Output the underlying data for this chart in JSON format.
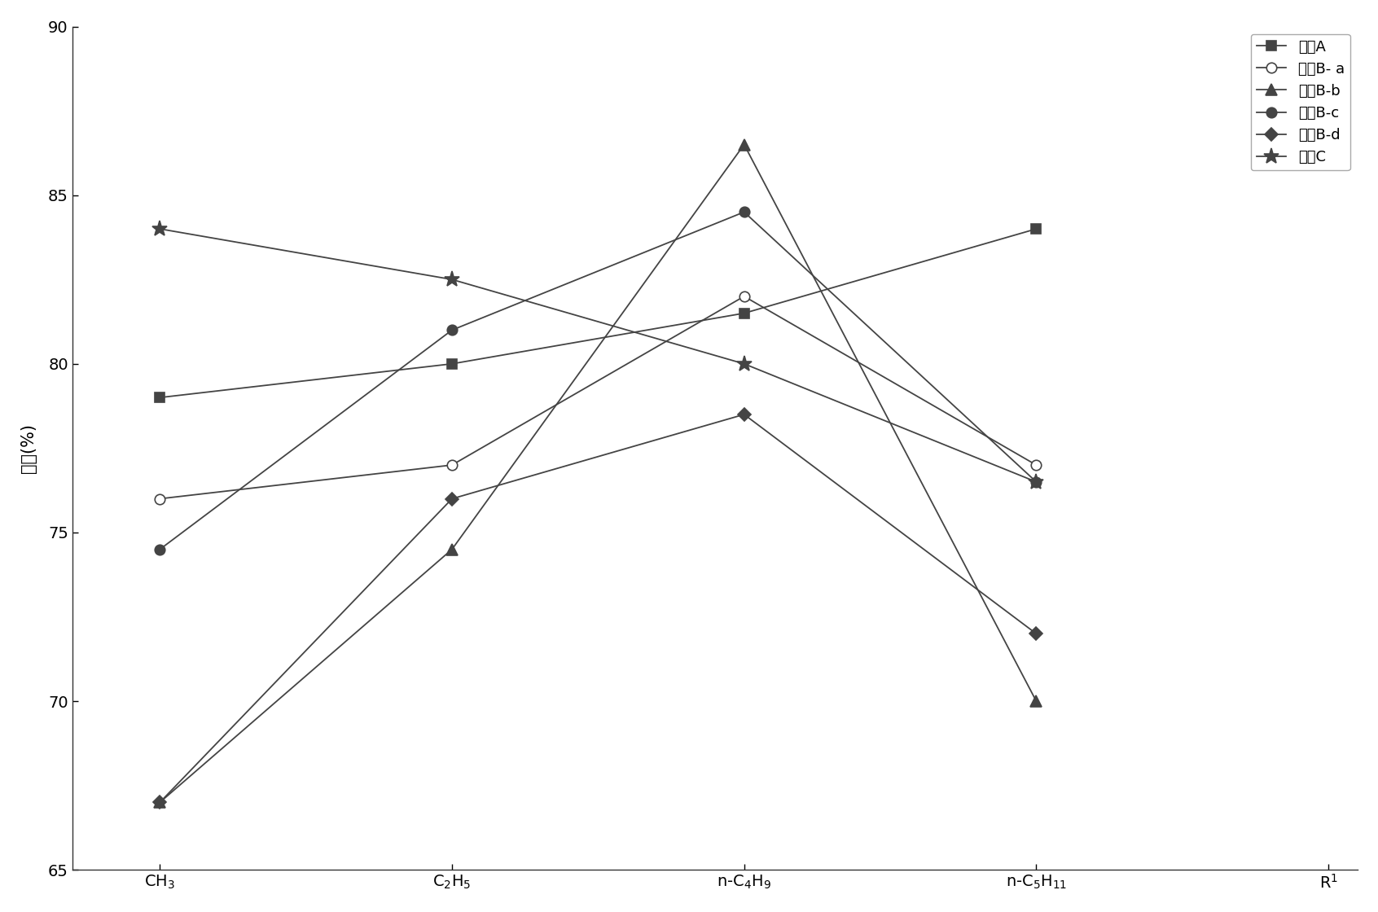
{
  "x_labels": [
    "CH$_3$",
    "C$_2$H$_5$",
    "n-C$_4$H$_9$",
    "n-C$_5$H$_{11}$"
  ],
  "x_label_end": "R$^1$",
  "ylabel": "收率(%)",
  "ylim": [
    65,
    90
  ],
  "yticks": [
    65,
    70,
    75,
    80,
    85,
    90
  ],
  "series": [
    {
      "name": "路线A",
      "values": [
        79,
        80,
        81.5,
        84
      ],
      "color": "#444444",
      "marker": "s",
      "mfc": "#444444",
      "mec": "#444444",
      "ms": 9,
      "linestyle": "-"
    },
    {
      "name": "路线B- a",
      "values": [
        76,
        77,
        82,
        77
      ],
      "color": "#444444",
      "marker": "o",
      "mfc": "white",
      "mec": "#444444",
      "ms": 9,
      "linestyle": "-"
    },
    {
      "name": "路线B-b",
      "values": [
        67,
        74.5,
        86.5,
        70
      ],
      "color": "#444444",
      "marker": "^",
      "mfc": "#444444",
      "mec": "#444444",
      "ms": 10,
      "linestyle": "-"
    },
    {
      "name": "路线B-c",
      "values": [
        74.5,
        81,
        84.5,
        76.5
      ],
      "color": "#444444",
      "marker": "o",
      "mfc": "#444444",
      "mec": "#444444",
      "ms": 9,
      "linestyle": "-"
    },
    {
      "name": "路线B-d",
      "values": [
        67,
        76,
        78.5,
        72
      ],
      "color": "#444444",
      "marker": "D",
      "mfc": "#444444",
      "mec": "#444444",
      "ms": 8,
      "linestyle": "-"
    },
    {
      "name": "路线C",
      "values": [
        84,
        82.5,
        80,
        76.5
      ],
      "color": "#444444",
      "marker": "*",
      "mfc": "#444444",
      "mec": "#444444",
      "ms": 14,
      "linestyle": "-"
    }
  ],
  "legend_loc": "upper right",
  "background_color": "#ffffff",
  "figure_size": [
    16.92,
    11.2
  ],
  "dpi": 100
}
